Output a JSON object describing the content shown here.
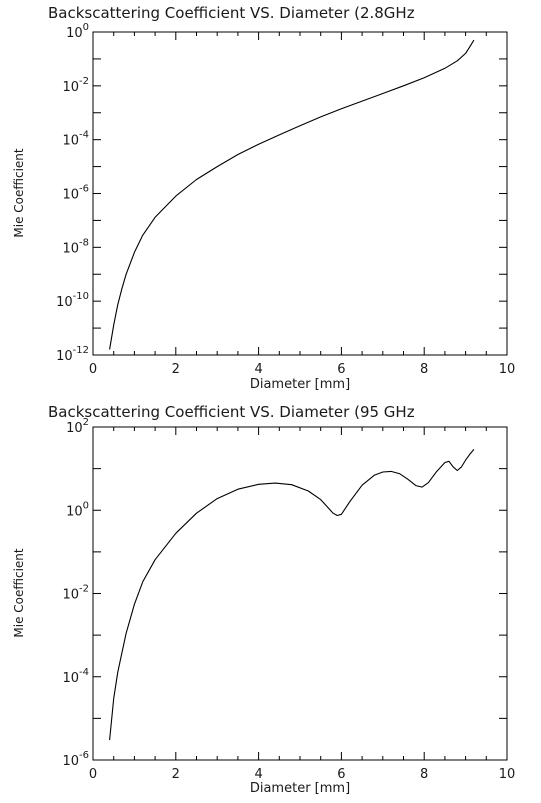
{
  "chart_data": [
    {
      "type": "line",
      "title": "Backscattering Coefficient VS. Diameter (2.8GHz",
      "xlabel": "Diameter [mm]",
      "ylabel": "Mie Coefficient",
      "xlim": [
        0,
        10
      ],
      "ylim": [
        1e-12,
        1
      ],
      "yscale": "log",
      "grid": false,
      "x_ticks": [
        "0",
        "2",
        "4",
        "6",
        "8",
        "10"
      ],
      "y_ticks": [
        {
          "base": "10",
          "exp": "0"
        },
        {
          "base": "10",
          "exp": "-2"
        },
        {
          "base": "10",
          "exp": "-4"
        },
        {
          "base": "10",
          "exp": "-6"
        },
        {
          "base": "10",
          "exp": "-8"
        },
        {
          "base": "10",
          "exp": "-10"
        },
        {
          "base": "10",
          "exp": "-12"
        }
      ],
      "series": [
        {
          "x": [
            0.4,
            0.5,
            0.6,
            0.7,
            0.8,
            1.0,
            1.2,
            1.5,
            2.0,
            2.5,
            3.0,
            3.5,
            4.0,
            4.5,
            5.0,
            5.5,
            6.0,
            6.5,
            7.0,
            7.5,
            8.0,
            8.5,
            8.8,
            9.0,
            9.1,
            9.2
          ],
          "y": [
            1.6e-12,
            1.3e-11,
            7.5e-11,
            3e-10,
            1e-09,
            6.5e-09,
            2.8e-08,
            1.3e-07,
            8e-07,
            3.3e-06,
            1e-05,
            2.8e-05,
            6.8e-05,
            0.00015,
            0.00033,
            0.0007,
            0.0014,
            0.0027,
            0.0052,
            0.01,
            0.02,
            0.045,
            0.085,
            0.16,
            0.28,
            0.5
          ]
        }
      ]
    },
    {
      "type": "line",
      "title": "Backscattering Coefficient VS. Diameter (95 GHz",
      "xlabel": "Diameter [mm]",
      "ylabel": "Mie Coefficient",
      "xlim": [
        0,
        10
      ],
      "ylim": [
        1e-06,
        100
      ],
      "yscale": "log",
      "grid": false,
      "x_ticks": [
        "0",
        "2",
        "4",
        "6",
        "8",
        "10"
      ],
      "y_ticks": [
        {
          "base": "10",
          "exp": "2"
        },
        {
          "base": "10",
          "exp": "0"
        },
        {
          "base": "10",
          "exp": "-2"
        },
        {
          "base": "10",
          "exp": "-4"
        },
        {
          "base": "10",
          "exp": "-6"
        }
      ],
      "series": [
        {
          "x": [
            0.4,
            0.5,
            0.6,
            0.8,
            1.0,
            1.2,
            1.5,
            2.0,
            2.5,
            3.0,
            3.5,
            4.0,
            4.4,
            4.8,
            5.2,
            5.5,
            5.8,
            5.9,
            6.0,
            6.2,
            6.5,
            6.8,
            7.0,
            7.2,
            7.4,
            7.6,
            7.8,
            7.95,
            8.1,
            8.3,
            8.5,
            8.6,
            8.7,
            8.8,
            8.9,
            9.0,
            9.1,
            9.2
          ],
          "y": [
            3e-06,
            3e-05,
            0.00013,
            0.0011,
            0.0055,
            0.019,
            0.065,
            0.28,
            0.85,
            1.9,
            3.2,
            4.2,
            4.5,
            4.1,
            2.9,
            1.8,
            0.85,
            0.75,
            0.8,
            1.6,
            4.0,
            7.0,
            8.3,
            8.6,
            7.6,
            5.6,
            3.9,
            3.6,
            4.6,
            8.5,
            14,
            15,
            11,
            9,
            11,
            16,
            22,
            29
          ]
        }
      ]
    }
  ]
}
